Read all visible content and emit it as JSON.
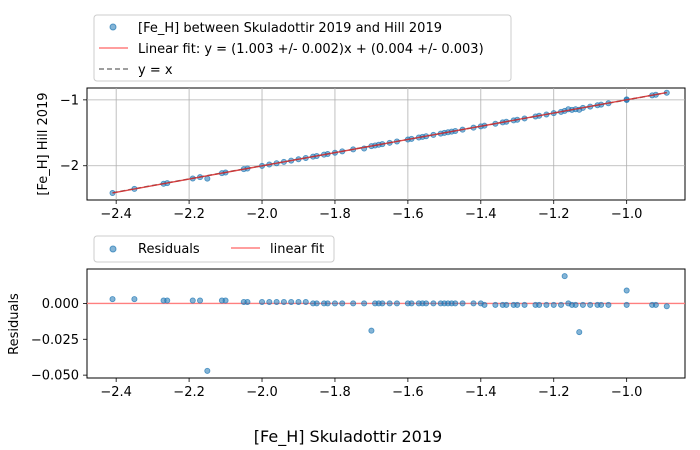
{
  "chart_data": [
    {
      "type": "scatter",
      "panel": "top",
      "xlabel": "",
      "ylabel": "[Fe_H] Hill 2019",
      "xlim": [
        -2.48,
        -0.84
      ],
      "ylim": [
        -2.52,
        -0.82
      ],
      "xticks": [
        -2.4,
        -2.2,
        -2.0,
        -1.8,
        -1.6,
        -1.4,
        -1.2,
        -1.0
      ],
      "xtick_labels": [
        "−2.4",
        "−2.2",
        "−2.0",
        "−1.8",
        "−1.6",
        "−1.4",
        "−1.2",
        "−1.0"
      ],
      "yticks": [
        -2,
        -1
      ],
      "ytick_labels": [
        "−2",
        "−1"
      ],
      "grid": true,
      "legend_position": "above",
      "legend": [
        {
          "label": "[Fe_H] between Skuladottir 2019 and Hill 2019",
          "kind": "scatter",
          "color": "#1f77b4"
        },
        {
          "label": "Linear fit: y = (1.003 +/- 0.002)x + (0.004 +/- 0.003)",
          "kind": "line",
          "color": "#ff7f7f"
        },
        {
          "label": "y = x",
          "kind": "dashed",
          "color": "#7f7f7f"
        }
      ],
      "fit": {
        "slope": 1.003,
        "intercept": 0.004
      },
      "x_range": [
        -2.41,
        -0.89
      ],
      "series": [
        {
          "name": "[Fe_H] between Skuladottir 2019 and Hill 2019",
          "x": [
            -2.41,
            -2.35,
            -2.27,
            -2.26,
            -2.19,
            -2.17,
            -2.15,
            -2.11,
            -2.1,
            -2.05,
            -2.04,
            -2.0,
            -1.98,
            -1.96,
            -1.94,
            -1.92,
            -1.9,
            -1.88,
            -1.86,
            -1.85,
            -1.83,
            -1.82,
            -1.8,
            -1.78,
            -1.75,
            -1.72,
            -1.7,
            -1.69,
            -1.68,
            -1.67,
            -1.65,
            -1.63,
            -1.6,
            -1.59,
            -1.57,
            -1.56,
            -1.55,
            -1.53,
            -1.51,
            -1.5,
            -1.49,
            -1.48,
            -1.47,
            -1.45,
            -1.42,
            -1.4,
            -1.39,
            -1.36,
            -1.34,
            -1.33,
            -1.31,
            -1.3,
            -1.28,
            -1.25,
            -1.24,
            -1.22,
            -1.2,
            -1.18,
            -1.17,
            -1.16,
            -1.15,
            -1.14,
            -1.13,
            -1.12,
            -1.1,
            -1.08,
            -1.07,
            -1.05,
            -1.0,
            -1.0,
            -0.93,
            -0.92,
            -0.89
          ],
          "y": [
            -2.414,
            -2.352,
            -2.274,
            -2.264,
            -2.193,
            -2.173,
            -2.195,
            -2.113,
            -2.103,
            -2.052,
            -2.042,
            -2.002,
            -1.982,
            -1.962,
            -1.942,
            -1.922,
            -1.902,
            -1.882,
            -1.862,
            -1.852,
            -1.832,
            -1.822,
            -1.802,
            -1.782,
            -1.752,
            -1.739,
            -1.702,
            -1.692,
            -1.682,
            -1.672,
            -1.652,
            -1.632,
            -1.602,
            -1.592,
            -1.572,
            -1.562,
            -1.552,
            -1.532,
            -1.512,
            -1.502,
            -1.492,
            -1.482,
            -1.472,
            -1.452,
            -1.422,
            -1.402,
            -1.392,
            -1.362,
            -1.342,
            -1.332,
            -1.312,
            -1.302,
            -1.282,
            -1.252,
            -1.242,
            -1.222,
            -1.202,
            -1.182,
            -1.168,
            -1.142,
            -1.152,
            -1.142,
            -1.151,
            -1.122,
            -1.102,
            -1.082,
            -1.072,
            -1.052,
            -0.992,
            -1.002,
            -0.932,
            -0.922,
            -0.892
          ]
        }
      ]
    },
    {
      "type": "scatter",
      "panel": "bottom",
      "xlabel": "[Fe_H] Skuladottir 2019",
      "ylabel": "Residuals",
      "xlim": [
        -2.48,
        -0.84
      ],
      "ylim": [
        -0.052,
        0.024
      ],
      "xticks": [
        -2.4,
        -2.2,
        -2.0,
        -1.8,
        -1.6,
        -1.4,
        -1.2,
        -1.0
      ],
      "xtick_labels": [
        "−2.4",
        "−2.2",
        "−2.0",
        "−1.8",
        "−1.6",
        "−1.4",
        "−1.2",
        "−1.0"
      ],
      "yticks": [
        0.0,
        -0.025,
        -0.05
      ],
      "ytick_labels": [
        "0.000",
        "−0.025",
        "−0.050"
      ],
      "grid": false,
      "legend_position": "above",
      "legend": [
        {
          "label": "Residuals",
          "kind": "scatter",
          "color": "#1f77b4"
        },
        {
          "label": "linear fit",
          "kind": "line",
          "color": "#ff7f7f"
        }
      ],
      "series": [
        {
          "name": "Residuals",
          "x": [
            -2.41,
            -2.35,
            -2.27,
            -2.26,
            -2.19,
            -2.17,
            -2.15,
            -2.11,
            -2.1,
            -2.05,
            -2.04,
            -2.0,
            -1.98,
            -1.96,
            -1.94,
            -1.92,
            -1.9,
            -1.88,
            -1.86,
            -1.85,
            -1.83,
            -1.82,
            -1.8,
            -1.78,
            -1.75,
            -1.72,
            -1.7,
            -1.69,
            -1.68,
            -1.67,
            -1.65,
            -1.63,
            -1.6,
            -1.59,
            -1.57,
            -1.56,
            -1.55,
            -1.53,
            -1.51,
            -1.5,
            -1.49,
            -1.48,
            -1.47,
            -1.45,
            -1.42,
            -1.4,
            -1.39,
            -1.36,
            -1.34,
            -1.33,
            -1.31,
            -1.3,
            -1.28,
            -1.25,
            -1.24,
            -1.22,
            -1.2,
            -1.18,
            -1.17,
            -1.16,
            -1.15,
            -1.14,
            -1.13,
            -1.12,
            -1.1,
            -1.08,
            -1.07,
            -1.05,
            -1.0,
            -1.0,
            -0.93,
            -0.92,
            -0.89
          ],
          "y": [
            0.003,
            0.003,
            0.002,
            0.002,
            0.002,
            0.002,
            -0.047,
            0.002,
            0.002,
            0.001,
            0.001,
            0.001,
            0.001,
            0.001,
            0.001,
            0.001,
            0.001,
            0.001,
            0.0,
            0.0,
            0.0,
            0.0,
            0.0,
            0.0,
            0.0,
            0.0,
            -0.019,
            0.0,
            0.0,
            0.0,
            0.0,
            0.0,
            0.0,
            0.0,
            0.0,
            0.0,
            0.0,
            0.0,
            0.0,
            0.0,
            0.0,
            0.0,
            0.0,
            0.0,
            0.0,
            0.0,
            -0.001,
            -0.001,
            -0.001,
            -0.001,
            -0.001,
            -0.001,
            -0.001,
            -0.001,
            -0.001,
            -0.001,
            -0.001,
            -0.001,
            0.019,
            0.0,
            -0.001,
            -0.001,
            -0.02,
            -0.001,
            -0.001,
            -0.001,
            -0.001,
            -0.001,
            0.009,
            -0.001,
            -0.001,
            -0.001,
            -0.002
          ]
        }
      ]
    }
  ]
}
